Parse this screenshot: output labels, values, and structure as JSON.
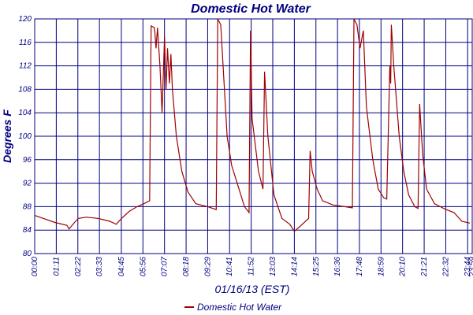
{
  "chart_data": {
    "type": "line",
    "title": "Domestic Hot Water",
    "x_label": "01/16/13 (EST)",
    "y_label": "Degrees F",
    "xlim": [
      0,
      1439
    ],
    "ylim": [
      80,
      120
    ],
    "xticks": [
      {
        "value": 0,
        "label": "00:00"
      },
      {
        "value": 71,
        "label": "01:11"
      },
      {
        "value": 142,
        "label": "02:22"
      },
      {
        "value": 213,
        "label": "03:33"
      },
      {
        "value": 285,
        "label": "04:45"
      },
      {
        "value": 356,
        "label": "05:56"
      },
      {
        "value": 427,
        "label": "07:07"
      },
      {
        "value": 498,
        "label": "08:18"
      },
      {
        "value": 569,
        "label": "09:29"
      },
      {
        "value": 641,
        "label": "10:41"
      },
      {
        "value": 712,
        "label": "11:52"
      },
      {
        "value": 783,
        "label": "13:03"
      },
      {
        "value": 854,
        "label": "14:14"
      },
      {
        "value": 925,
        "label": "15:25"
      },
      {
        "value": 996,
        "label": "16:36"
      },
      {
        "value": 1068,
        "label": "17:48"
      },
      {
        "value": 1139,
        "label": "18:59"
      },
      {
        "value": 1210,
        "label": "20:10"
      },
      {
        "value": 1281,
        "label": "21:21"
      },
      {
        "value": 1352,
        "label": "22:32"
      },
      {
        "value": 1424,
        "label": "23:44"
      },
      {
        "value": 1439,
        "label": "23:59"
      }
    ],
    "yticks": [
      80,
      84,
      88,
      92,
      96,
      100,
      104,
      108,
      112,
      116,
      120
    ],
    "grid": true,
    "legend": "bottom",
    "x": [
      0,
      28,
      67,
      106,
      113,
      131,
      144,
      170,
      208,
      247,
      268,
      286,
      311,
      337,
      363,
      378,
      383,
      394,
      399,
      404,
      412,
      419,
      427,
      432,
      437,
      443,
      448,
      453,
      466,
      484,
      504,
      530,
      569,
      597,
      602,
      612,
      633,
      648,
      672,
      690,
      705,
      710,
      715,
      736,
      751,
      756,
      767,
      787,
      813,
      839,
      854,
      870,
      901,
      906,
      913,
      929,
      947,
      980,
      1019,
      1045,
      1050,
      1060,
      1070,
      1081,
      1091,
      1112,
      1130,
      1148,
      1158,
      1168,
      1171,
      1173,
      1181,
      1199,
      1214,
      1230,
      1250,
      1261,
      1266,
      1276,
      1289,
      1315,
      1353,
      1379,
      1405,
      1431
    ],
    "series": [
      {
        "name": "Domestic Hot Water",
        "color": "#a00000",
        "values": [
          86.5,
          86,
          85.3,
          84.8,
          84.2,
          85.3,
          86,
          86.2,
          86,
          85.5,
          85,
          86,
          87.2,
          88,
          88.6,
          89,
          118.8,
          118.5,
          115,
          118.5,
          112,
          104,
          117,
          108,
          115,
          109,
          114,
          108,
          100,
          94,
          90.5,
          88.5,
          88,
          87.5,
          120,
          119,
          100,
          95,
          91,
          88,
          87,
          118,
          103,
          94,
          91,
          111,
          100,
          90,
          86,
          85,
          83.8,
          84.5,
          86,
          97.5,
          94,
          91,
          89,
          88.3,
          88,
          87.8,
          120,
          119,
          115,
          118,
          105,
          96,
          91,
          89.5,
          89.3,
          112,
          109,
          119,
          112,
          100,
          94,
          90,
          88,
          87.7,
          105.5,
          97,
          91,
          88.5,
          87.5,
          87,
          85.5,
          85.2
        ]
      }
    ]
  }
}
